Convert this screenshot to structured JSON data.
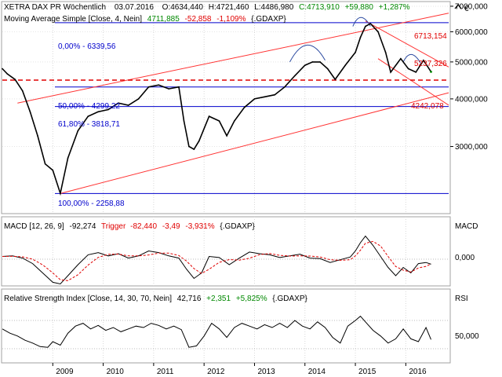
{
  "colors": {
    "price": "#000000",
    "positive": "#008800",
    "negative": "#e00000",
    "fib": "#0000cc",
    "trend": "#ff3333",
    "hline": "#e00000",
    "signal": "#e00000",
    "background": "#ffffff"
  },
  "icons": {
    "collapse_toggle": "chevron-up-icon"
  },
  "header": {
    "title": "XETRA DAX PR Wöchentlich",
    "date": "03.07.2016",
    "open": "O:4634,440",
    "high": "H:4721,460",
    "low": "L:4486,980",
    "close": "C:4713,910",
    "change": "+59,880",
    "change_pct": "+1,287%"
  },
  "ma_label": {
    "text": "Moving Average Simple [Close, 4, Nein]",
    "value": "4711,885",
    "change": "-52,858",
    "change_pct": "-1,109%",
    "symbol": "{.GDAXP}"
  },
  "macd_label": {
    "text": "MACD [12, 26, 9]",
    "value": "-92,274",
    "trigger_text": "Trigger",
    "trigger_value": "-82,440",
    "change": "-3,49",
    "change_pct": "-3,931%",
    "symbol": "{.GDAXP}"
  },
  "rsi_label": {
    "text": "Relative Strength Index [Close, 14, 30, 70, Nein]",
    "value": "42,716",
    "change": "+2,351",
    "change_pct": "+5,825%",
    "symbol": "{.GDAXP}"
  },
  "chart_data": [
    {
      "type": "line",
      "name": "price",
      "currency": "€",
      "x": [
        2008.0,
        2008.1,
        2008.25,
        2008.4,
        2008.55,
        2008.7,
        2008.85,
        2009.0,
        2009.15,
        2009.3,
        2009.5,
        2009.7,
        2009.9,
        2010.1,
        2010.3,
        2010.5,
        2010.7,
        2010.9,
        2011.1,
        2011.3,
        2011.5,
        2011.6,
        2011.7,
        2011.8,
        2011.9,
        2012.1,
        2012.3,
        2012.45,
        2012.6,
        2012.8,
        2013.0,
        2013.2,
        2013.4,
        2013.6,
        2013.8,
        2014.0,
        2014.15,
        2014.3,
        2014.45,
        2014.6,
        2014.8,
        2015.0,
        2015.1,
        2015.2,
        2015.3,
        2015.45,
        2015.6,
        2015.7,
        2015.9,
        2016.05,
        2016.2,
        2016.35,
        2016.5
      ],
      "y": [
        4800,
        4650,
        4500,
        4200,
        3700,
        3200,
        2700,
        2600,
        2260,
        2800,
        3300,
        3600,
        3700,
        3750,
        3900,
        3850,
        4000,
        4300,
        4350,
        4250,
        4300,
        3500,
        3000,
        2950,
        3100,
        3600,
        3500,
        3200,
        3500,
        3800,
        4000,
        4050,
        4100,
        4300,
        4600,
        4900,
        5000,
        5000,
        4800,
        4500,
        4900,
        5300,
        5800,
        6200,
        6300,
        6000,
        5300,
        4700,
        5100,
        4800,
        4700,
        5050,
        4714
      ],
      "ylim": [
        2000,
        7200
      ],
      "yticks": [
        "3000,000",
        "4000,000",
        "5000,000",
        "6000,000",
        "7000,000"
      ],
      "ma_last": 4711.885
    },
    {
      "type": "line",
      "name": "MACD",
      "axis_label": "MACD",
      "ytick": "0,000",
      "x": [
        2008.0,
        2008.2,
        2008.4,
        2008.6,
        2008.8,
        2009.0,
        2009.15,
        2009.3,
        2009.5,
        2009.7,
        2009.9,
        2010.1,
        2010.3,
        2010.5,
        2010.7,
        2010.9,
        2011.1,
        2011.3,
        2011.5,
        2011.65,
        2011.8,
        2011.95,
        2012.1,
        2012.3,
        2012.5,
        2012.7,
        2012.9,
        2013.1,
        2013.3,
        2013.5,
        2013.7,
        2013.9,
        2014.1,
        2014.3,
        2014.5,
        2014.7,
        2014.9,
        2015.0,
        2015.1,
        2015.2,
        2015.35,
        2015.5,
        2015.65,
        2015.8,
        2015.95,
        2016.1,
        2016.25,
        2016.4,
        2016.5
      ],
      "y": [
        50,
        60,
        20,
        -80,
        -250,
        -420,
        -450,
        -300,
        -100,
        80,
        120,
        60,
        100,
        20,
        60,
        150,
        120,
        60,
        20,
        -180,
        -350,
        -250,
        50,
        30,
        -100,
        20,
        130,
        100,
        80,
        30,
        60,
        90,
        20,
        10,
        -60,
        -10,
        40,
        150,
        300,
        420,
        250,
        50,
        -150,
        -300,
        -150,
        -250,
        -80,
        -60,
        -92
      ],
      "trigger_last": -82.44
    },
    {
      "type": "line",
      "name": "RSI",
      "axis_label": "RSI",
      "ytick": "50,000",
      "levels": [
        30,
        70
      ],
      "x": [
        2008.0,
        2008.15,
        2008.3,
        2008.45,
        2008.6,
        2008.75,
        2008.9,
        2009.0,
        2009.15,
        2009.3,
        2009.45,
        2009.6,
        2009.75,
        2009.9,
        2010.05,
        2010.2,
        2010.35,
        2010.5,
        2010.65,
        2010.8,
        2010.95,
        2011.1,
        2011.25,
        2011.4,
        2011.55,
        2011.7,
        2011.85,
        2012.0,
        2012.15,
        2012.3,
        2012.45,
        2012.6,
        2012.75,
        2012.9,
        2013.05,
        2013.2,
        2013.35,
        2013.5,
        2013.65,
        2013.8,
        2013.95,
        2014.1,
        2014.25,
        2014.4,
        2014.55,
        2014.7,
        2014.85,
        2015.0,
        2015.1,
        2015.2,
        2015.35,
        2015.5,
        2015.65,
        2015.8,
        2015.95,
        2016.1,
        2016.25,
        2016.4,
        2016.5
      ],
      "y": [
        58,
        52,
        48,
        42,
        38,
        33,
        32,
        40,
        35,
        52,
        62,
        66,
        58,
        63,
        56,
        60,
        54,
        58,
        62,
        60,
        66,
        63,
        58,
        62,
        57,
        32,
        34,
        48,
        66,
        58,
        46,
        60,
        66,
        62,
        58,
        64,
        60,
        66,
        60,
        70,
        62,
        58,
        68,
        60,
        46,
        38,
        62,
        70,
        76,
        68,
        56,
        48,
        38,
        44,
        58,
        44,
        40,
        60,
        43
      ]
    }
  ],
  "fib_labels": [
    "0,00% - 6339,56",
    "50,00% - 4299,22",
    "61,80% - 3818,71",
    "100,00% - 2258,88"
  ],
  "right_labels": [
    "6713,154",
    "5237,326",
    "4242,078"
  ],
  "x_labels": [
    "2009",
    "2010",
    "2011",
    "2012",
    "2013",
    "2014",
    "2015",
    "2016"
  ]
}
